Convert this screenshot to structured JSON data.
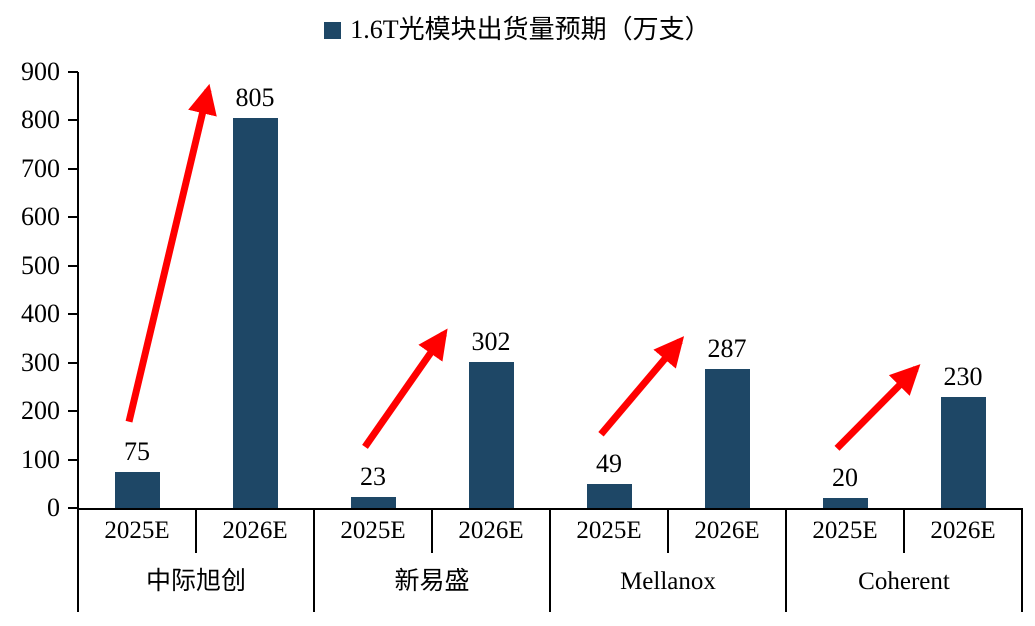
{
  "chart_data": {
    "type": "bar",
    "title": "1.6T光模块出货量预期（万支）",
    "legend": [
      {
        "label": "1.6T光模块出货量预期（万支）",
        "color": "#1E4766",
        "position": "top-center"
      }
    ],
    "categories": [
      "2025E",
      "2026E"
    ],
    "groups": [
      {
        "name": "中际旭创",
        "values": [
          75,
          805
        ]
      },
      {
        "name": "新易盛",
        "values": [
          23,
          302
        ]
      },
      {
        "name": "Mellanox",
        "values": [
          49,
          287
        ]
      },
      {
        "name": "Coherent",
        "values": [
          20,
          230
        ]
      }
    ],
    "ylim": [
      0,
      900
    ],
    "yticks": [
      0,
      100,
      200,
      300,
      400,
      500,
      600,
      700,
      800,
      900
    ],
    "xlabel": "",
    "ylabel": "",
    "grid": false,
    "bar_color": "#1E4766",
    "axis_color": "#000000",
    "arrow_color": "#FF0000",
    "annotations": [
      {
        "type": "arrow",
        "group": "中际旭创",
        "from": "2025E",
        "to": "2026E",
        "color": "#FF0000"
      },
      {
        "type": "arrow",
        "group": "新易盛",
        "from": "2025E",
        "to": "2026E",
        "color": "#FF0000"
      },
      {
        "type": "arrow",
        "group": "Mellanox",
        "from": "2025E",
        "to": "2026E",
        "color": "#FF0000"
      },
      {
        "type": "arrow",
        "group": "Coherent",
        "from": "2025E",
        "to": "2026E",
        "color": "#FF0000"
      }
    ]
  }
}
